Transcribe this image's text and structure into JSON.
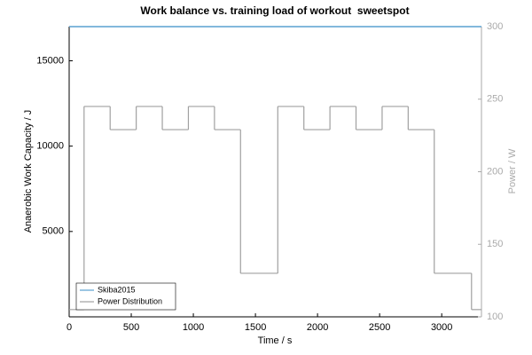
{
  "chart_data": {
    "type": "line",
    "title": "Work balance vs. training load of workout  sweetspot",
    "xlabel": "Time / s",
    "ylabel": "Anaerobic Work Capacity / J",
    "y2label": "Power / W",
    "xlim": [
      0,
      3320
    ],
    "xticks": [
      0,
      500,
      1000,
      1500,
      2000,
      2500,
      3000
    ],
    "ylim": [
      0,
      17000
    ],
    "yticks": [
      5000,
      10000,
      15000
    ],
    "y2lim": [
      100,
      300
    ],
    "y2ticks": [
      100,
      150,
      200,
      250,
      300
    ],
    "y2color": "#aaaaaa",
    "legend": "lower left",
    "series": [
      {
        "name": "Skiba2015",
        "color": "#5aa0d0",
        "step": false,
        "x": [
          0,
          3320
        ],
        "values": [
          17000,
          17000
        ]
      },
      {
        "name": "Power Distribution",
        "color": "#a0a0a0",
        "axis": "y2",
        "step": true,
        "x": [
          0,
          120,
          330,
          540,
          750,
          960,
          1170,
          1380,
          1680,
          1890,
          2100,
          2310,
          2520,
          2730,
          2940,
          3240,
          3320
        ],
        "values": [
          105,
          245,
          229,
          245,
          229,
          245,
          229,
          130,
          245,
          229,
          245,
          229,
          245,
          229,
          130,
          105,
          105
        ]
      }
    ]
  }
}
